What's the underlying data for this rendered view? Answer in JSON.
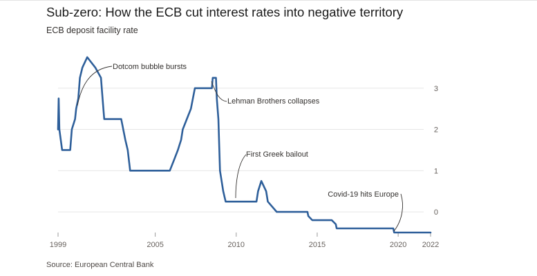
{
  "header": {
    "title": "Sub-zero: How the ECB cut interest rates into negative territory",
    "subtitle": "ECB deposit facility rate"
  },
  "footer": {
    "source": "Source: European Central Bank"
  },
  "colors": {
    "line": "#2e5f9a",
    "grid": "#e6e6e6",
    "axis": "#999999",
    "annotation": "#33302e"
  },
  "chart_data": {
    "type": "line",
    "title": "Sub-zero: How the ECB cut interest rates into negative territory",
    "subtitle": "ECB deposit facility rate",
    "xlabel": "",
    "ylabel": "",
    "xlim": [
      1999,
      2022
    ],
    "ylim": [
      -0.5,
      4.0
    ],
    "x_ticks": [
      1999,
      2005,
      2010,
      2015,
      2020,
      2022
    ],
    "y_ticks": [
      0,
      1,
      2,
      3
    ],
    "grid": "horizontal",
    "legend": "none",
    "series": [
      {
        "name": "ECB deposit facility rate",
        "points": [
          [
            1999.0,
            2.0
          ],
          [
            1999.04,
            2.75
          ],
          [
            1999.08,
            2.0
          ],
          [
            1999.25,
            1.5
          ],
          [
            1999.75,
            1.5
          ],
          [
            1999.85,
            2.0
          ],
          [
            2000.05,
            2.25
          ],
          [
            2000.12,
            2.5
          ],
          [
            2000.25,
            2.75
          ],
          [
            2000.35,
            3.25
          ],
          [
            2000.5,
            3.5
          ],
          [
            2000.8,
            3.75
          ],
          [
            2001.3,
            3.5
          ],
          [
            2001.65,
            3.25
          ],
          [
            2001.75,
            2.75
          ],
          [
            2001.85,
            2.25
          ],
          [
            2002.9,
            2.25
          ],
          [
            2003.15,
            1.75
          ],
          [
            2003.3,
            1.5
          ],
          [
            2003.45,
            1.0
          ],
          [
            2005.9,
            1.0
          ],
          [
            2006.15,
            1.25
          ],
          [
            2006.4,
            1.5
          ],
          [
            2006.6,
            1.75
          ],
          [
            2006.7,
            2.0
          ],
          [
            2006.95,
            2.25
          ],
          [
            2007.2,
            2.5
          ],
          [
            2007.45,
            3.0
          ],
          [
            2008.5,
            3.0
          ],
          [
            2008.55,
            3.25
          ],
          [
            2008.75,
            3.25
          ],
          [
            2008.8,
            2.75
          ],
          [
            2008.9,
            2.25
          ],
          [
            2009.0,
            1.0
          ],
          [
            2009.2,
            0.5
          ],
          [
            2009.35,
            0.25
          ],
          [
            2011.25,
            0.25
          ],
          [
            2011.35,
            0.5
          ],
          [
            2011.55,
            0.75
          ],
          [
            2011.85,
            0.5
          ],
          [
            2011.95,
            0.25
          ],
          [
            2012.5,
            0.0
          ],
          [
            2014.4,
            0.0
          ],
          [
            2014.45,
            -0.1
          ],
          [
            2014.7,
            -0.2
          ],
          [
            2015.9,
            -0.2
          ],
          [
            2016.15,
            -0.3
          ],
          [
            2016.2,
            -0.4
          ],
          [
            2019.7,
            -0.4
          ],
          [
            2019.75,
            -0.5
          ],
          [
            2022.0,
            -0.5
          ]
        ]
      }
    ],
    "annotations": [
      {
        "text": "Dotcom bubble bursts",
        "x": 2000.4,
        "y": 3.0
      },
      {
        "text": "Lehman Brothers collapses",
        "x": 2008.6,
        "y": 3.2
      },
      {
        "text": "First Greek bailout",
        "x": 2010.3,
        "y": 0.3
      },
      {
        "text": "Covid-19 hits Europe",
        "x": 2020.4,
        "y": -0.5
      }
    ]
  }
}
